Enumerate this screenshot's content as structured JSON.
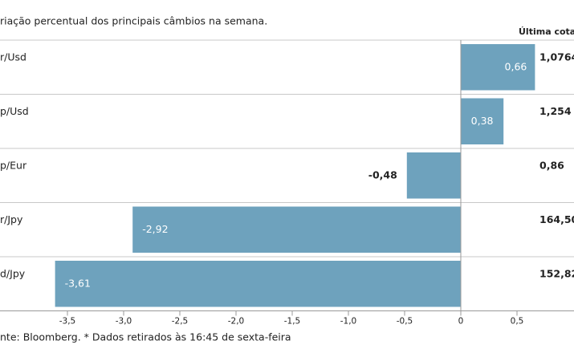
{
  "chart_data": {
    "type": "hbar",
    "title": "riação percentual dos principais câmbios na semana.",
    "categories": [
      "r/Usd",
      "p/Usd",
      "p/Eur",
      "r/Jpy",
      "d/Jpy"
    ],
    "values": [
      0.66,
      0.38,
      -0.48,
      -2.92,
      -3.61
    ],
    "value_labels": [
      "0,66",
      "0,38",
      "-0,48",
      "-2,92",
      "-3,61"
    ],
    "color": "#6ea2bd",
    "xlim": [
      -4.1,
      0.9
    ],
    "xticks": [
      {
        "value": -3.5,
        "label": "-3,5"
      },
      {
        "value": -3,
        "label": "-3,0"
      },
      {
        "value": -2.5,
        "label": "-2,5"
      },
      {
        "value": -2,
        "label": "-2,0"
      },
      {
        "value": -1.5,
        "label": "-1,5"
      },
      {
        "value": -1,
        "label": "-1,0"
      },
      {
        "value": -0.5,
        "label": "-0,5"
      },
      0,
      {
        "value": 0.5,
        "label": "0,5"
      }
    ],
    "side_column": {
      "header": "Última cotaç",
      "values": [
        "1,0764",
        "1,254",
        "0,86",
        "164,50",
        "152,82"
      ]
    },
    "source": "nte: Bloomberg.  * Dados retirados às 16:45 de sexta-feira"
  }
}
